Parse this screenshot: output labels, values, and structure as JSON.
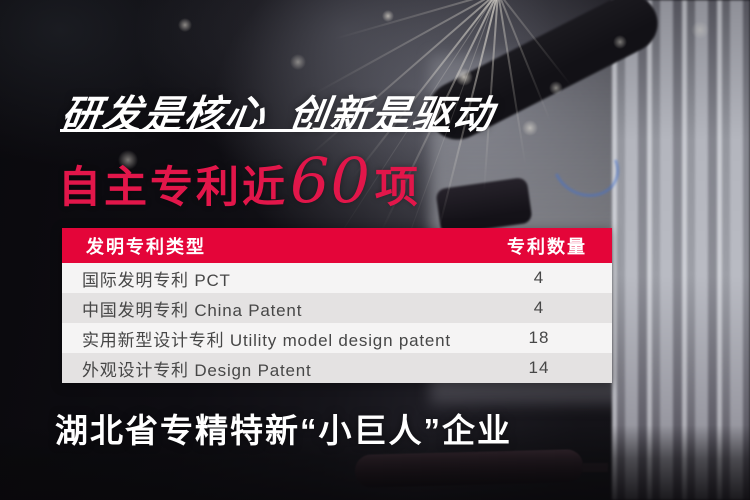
{
  "colors": {
    "header_red": "#e40539",
    "headline_red": "#e2164a",
    "row_light": "#f5f4f4",
    "row_dark": "#e4e2e2",
    "row_text": "#474747",
    "white": "#ffffff"
  },
  "hero": {
    "title": "研发是核心 创新是驱动",
    "headline_prefix": "自主专利近",
    "headline_number": "60",
    "headline_suffix": "项"
  },
  "table": {
    "headers": {
      "type": "发明专利类型",
      "count": "专利数量"
    },
    "rows": [
      {
        "type": "国际发明专利  PCT",
        "count": "4"
      },
      {
        "type": "中国发明专利  China Patent",
        "count": "4"
      },
      {
        "type": "实用新型设计专利  Utility model design patent",
        "count": "18"
      },
      {
        "type": "外观设计专利  Design Patent",
        "count": "14"
      }
    ]
  },
  "footer": {
    "text": "湖北省专精特新“小巨人”企业"
  }
}
